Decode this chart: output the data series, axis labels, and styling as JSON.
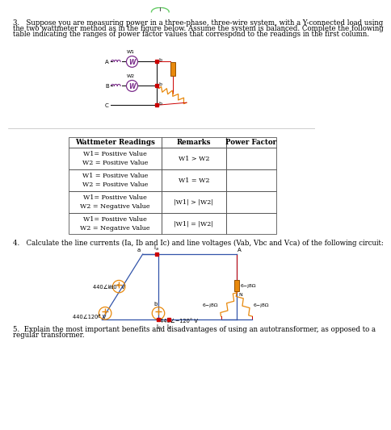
{
  "q3_text_line1": "3.   Suppose you are measuring power in a three-phase, three-wire system, with a Y-connected load using",
  "q3_text_line2": "the two wattmeter method as in the figure below. Assume the system is balanced. Complete the following",
  "q3_text_line3": "table indicating the ranges of power factor values that correspond to the readings in the first column.",
  "q4_text": "4.   Calculate the line currents (Ia, Ib and Ic) and line voltages (Vab, Vbc and Vca) of the following circuit:",
  "q5_text_line1": "5.  Explain the most important benefits and disadvantages of using an autotransformer, as opposed to a",
  "q5_text_line2": "regular transformer.",
  "table_headers": [
    "Wattmeter Readings",
    "Remarks",
    "Power Factor"
  ],
  "table_col1": [
    "W1= Positive Value\nW2 = Positive Value",
    "W1 = Positive Value\nW2 = Positive Value",
    "W1= Positive Value\nW2 = Negative Value",
    "W1= Positive Value\nW2 = Negative Value"
  ],
  "table_col2": [
    "W1 > W2",
    "W1 = W2",
    "|W1| > |W2|",
    "|W1| = |W2|"
  ],
  "bg_color": "#ffffff",
  "text_color": "#000000",
  "purple": "#7B2D8B",
  "red": "#cc0000",
  "orange": "#E8890C",
  "blue": "#3355aa",
  "green": "#66cc66",
  "gray": "#999999",
  "dark": "#222222"
}
